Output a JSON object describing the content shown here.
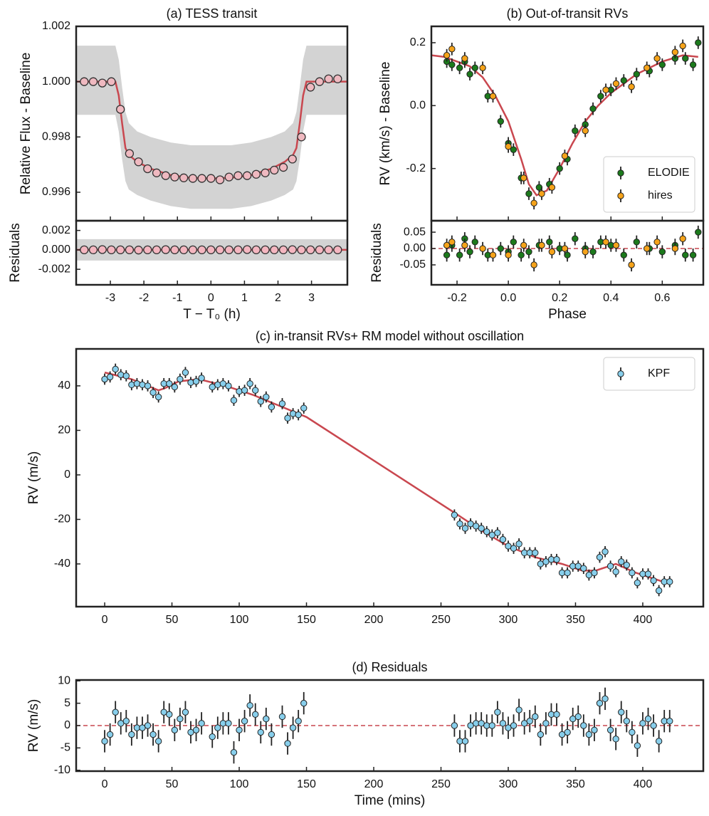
{
  "chart_data": [
    {
      "type": "scatter",
      "title": "(a) TESS transit",
      "ylabel": "Relative Flux - Baseline",
      "xlim": [
        -4.02,
        4.07
      ],
      "ylim": [
        0.99497,
        1.002
      ],
      "yticks": [
        0.996,
        0.998,
        {
          "value": 1,
          "label": "1.000"
        },
        1.002
      ],
      "series": [
        {
          "style": "band",
          "color": "#d3d3d3",
          "x": [
            -4.02,
            -2.85,
            -2.75,
            -2.65,
            -2.55,
            -2.45,
            -2.2,
            -1.8,
            -1.2,
            -0.6,
            0,
            0.6,
            1.2,
            1.8,
            2.2,
            2.45,
            2.55,
            2.65,
            2.75,
            2.85,
            4.07
          ],
          "lower": [
            0.9988,
            0.9988,
            0.9982,
            0.9972,
            0.9964,
            0.9961,
            0.9959,
            0.9957,
            0.9955,
            0.9954,
            0.9954,
            0.9954,
            0.9955,
            0.9957,
            0.9959,
            0.9961,
            0.9964,
            0.9972,
            0.9982,
            0.9988,
            0.9988
          ],
          "upper": [
            1.0013,
            1.0013,
            1.0008,
            0.9998,
            0.9989,
            0.9985,
            0.9982,
            0.998,
            0.9978,
            0.9977,
            0.9977,
            0.9977,
            0.9978,
            0.998,
            0.9982,
            0.9985,
            0.9989,
            0.9998,
            1.0008,
            1.0013,
            1.0013
          ]
        },
        {
          "style": "line",
          "color": "#c9474f",
          "x": [
            -4.02,
            -2.85,
            -2.75,
            -2.65,
            -2.55,
            -2.45,
            -2.2,
            -1.8,
            -1.2,
            -0.6,
            0,
            0.6,
            1.2,
            1.8,
            2.2,
            2.45,
            2.55,
            2.65,
            2.75,
            2.85,
            4.07
          ],
          "values": [
            1.0,
            1.0,
            0.9995,
            0.9985,
            0.9976,
            0.99735,
            0.9971,
            0.99685,
            0.99662,
            0.99652,
            0.9965,
            0.99652,
            0.99662,
            0.99685,
            0.9971,
            0.99735,
            0.9976,
            0.9985,
            0.9995,
            1.0,
            1.0
          ]
        },
        {
          "style": "points",
          "color": "#efb9c0",
          "x": [
            -3.78,
            -3.51,
            -3.24,
            -2.97,
            -2.7,
            -2.43,
            -2.16,
            -1.89,
            -1.62,
            -1.35,
            -1.08,
            -0.81,
            -0.54,
            -0.27,
            0,
            0.27,
            0.54,
            0.81,
            1.08,
            1.35,
            1.62,
            1.89,
            2.16,
            2.43,
            2.7,
            2.97,
            3.24,
            3.51,
            3.78
          ],
          "values": [
            1.0,
            1.0,
            0.99995,
            1.0,
            0.999,
            0.9974,
            0.9971,
            0.99685,
            0.9967,
            0.9966,
            0.99655,
            0.99652,
            0.9965,
            0.9965,
            0.9965,
            0.99645,
            0.99655,
            0.9966,
            0.9966,
            0.99665,
            0.9967,
            0.9968,
            0.9969,
            0.9972,
            0.998,
            0.9998,
            1.0,
            1.0001,
            1.0001
          ]
        }
      ]
    },
    {
      "type": "scatter",
      "ylabel": "Residuals",
      "xlabel": "T − T₀ (h)",
      "xlim": [
        -4.02,
        4.07
      ],
      "ylim": [
        -0.0036,
        0.003
      ],
      "xticks": [
        -3,
        -2,
        -1,
        0,
        1,
        2,
        3
      ],
      "yticks": [
        -0.002,
        {
          "value": 0,
          "label": "0.000"
        },
        0.002
      ],
      "series": [
        {
          "style": "band",
          "color": "#d3d3d3",
          "x": [
            -4.02,
            4.07
          ],
          "lower": [
            -0.0011,
            -0.0011
          ],
          "upper": [
            0.0011,
            0.0011
          ]
        },
        {
          "style": "line",
          "color": "#c9474f",
          "x": [
            -4.02,
            4.07
          ],
          "values": [
            0,
            0
          ]
        },
        {
          "style": "points",
          "color": "#f4b6c0",
          "x": [
            -3.78,
            -3.51,
            -3.24,
            -2.97,
            -2.7,
            -2.43,
            -2.16,
            -1.89,
            -1.62,
            -1.35,
            -1.08,
            -0.81,
            -0.54,
            -0.27,
            0,
            0.27,
            0.54,
            0.81,
            1.08,
            1.35,
            1.62,
            1.89,
            2.16,
            2.43,
            2.7,
            2.97,
            3.24,
            3.51,
            3.78
          ],
          "values": [
            0,
            0,
            3e-05,
            0,
            0,
            0,
            -2e-05,
            0,
            0,
            2e-05,
            0,
            0,
            0,
            0,
            0,
            0,
            0,
            0,
            3e-05,
            0,
            0,
            0,
            0,
            2e-05,
            0,
            0,
            0,
            0,
            0
          ]
        }
      ]
    },
    {
      "type": "errorbar",
      "title": "(b) Out-of-transit RVs",
      "ylabel": "RV (km/s) - Baseline",
      "xlim": [
        -0.3,
        0.76
      ],
      "ylim": [
        -0.366,
        0.252
      ],
      "yticks": [
        -0.2,
        {
          "value": 0,
          "label": "0.0"
        },
        0.2
      ],
      "legend": "lower right",
      "series": [
        {
          "style": "errorbar",
          "name": "ELODIE",
          "color": "#1c7a1c",
          "error": 0.02,
          "x": [
            -0.24,
            -0.22,
            -0.19,
            -0.17,
            -0.15,
            -0.13,
            -0.08,
            -0.03,
            0.0,
            0.02,
            0.05,
            0.08,
            0.12,
            0.16,
            0.2,
            0.23,
            0.26,
            0.3,
            0.33,
            0.36,
            0.4,
            0.45,
            0.5,
            0.55,
            0.6,
            0.65,
            0.69,
            0.72,
            0.74
          ],
          "values": [
            0.14,
            0.13,
            0.12,
            0.14,
            0.1,
            0.12,
            0.03,
            -0.05,
            -0.12,
            -0.14,
            -0.23,
            -0.28,
            -0.26,
            -0.25,
            -0.2,
            -0.17,
            -0.08,
            -0.06,
            -0.01,
            0.03,
            0.05,
            0.08,
            0.1,
            0.11,
            0.13,
            0.15,
            0.15,
            0.13,
            0.2
          ]
        },
        {
          "style": "errorbar",
          "name": "hires",
          "color": "#f5a31a",
          "error": 0.02,
          "x": [
            -0.24,
            -0.22,
            -0.17,
            -0.1,
            -0.06,
            0.0,
            0.06,
            0.1,
            0.13,
            0.17,
            0.22,
            0.3,
            0.38,
            0.42,
            0.48,
            0.54,
            0.58,
            0.65,
            0.68
          ],
          "values": [
            0.16,
            0.18,
            0.15,
            0.12,
            0.03,
            -0.13,
            -0.23,
            -0.31,
            -0.28,
            -0.26,
            -0.16,
            -0.08,
            0.05,
            0.07,
            0.06,
            0.12,
            0.15,
            0.17,
            0.19
          ]
        },
        {
          "style": "line",
          "color": "#c9474f",
          "x": [
            -0.3,
            -0.25,
            -0.2,
            -0.15,
            -0.1,
            -0.05,
            0,
            0.05,
            0.08,
            0.11,
            0.15,
            0.2,
            0.25,
            0.3,
            0.35,
            0.4,
            0.5,
            0.6,
            0.68,
            0.74
          ],
          "values": [
            0.16,
            0.155,
            0.14,
            0.125,
            0.09,
            0.03,
            -0.05,
            -0.17,
            -0.25,
            -0.285,
            -0.27,
            -0.2,
            -0.12,
            -0.05,
            0.0,
            0.04,
            0.1,
            0.14,
            0.16,
            0.155
          ]
        }
      ]
    },
    {
      "type": "errorbar",
      "ylabel": "Residuals",
      "xlabel": "Phase",
      "xlim": [
        -0.3,
        0.76
      ],
      "ylim": [
        -0.111,
        0.085
      ],
      "xticks": [
        -0.2,
        {
          "value": 0,
          "label": "0.0"
        },
        0.2,
        0.4,
        0.6
      ],
      "yticks": [
        -0.05,
        {
          "value": 0,
          "label": "0.00"
        },
        0.05
      ],
      "series": [
        {
          "style": "line",
          "dashed": true,
          "color": "#c9474f",
          "x": [
            -0.3,
            0.76
          ],
          "values": [
            0,
            0
          ]
        },
        {
          "style": "errorbar",
          "color": "#1c7a1c",
          "error": 0.02,
          "x": [
            -0.24,
            -0.22,
            -0.19,
            -0.17,
            -0.15,
            -0.13,
            -0.08,
            -0.03,
            0.0,
            0.02,
            0.05,
            0.08,
            0.12,
            0.16,
            0.2,
            0.23,
            0.26,
            0.3,
            0.33,
            0.36,
            0.4,
            0.45,
            0.5,
            0.55,
            0.6,
            0.65,
            0.69,
            0.72,
            0.74
          ],
          "values": [
            -0.02,
            0.01,
            -0.02,
            0.03,
            -0.01,
            0.02,
            -0.02,
            0.0,
            -0.01,
            0.02,
            -0.02,
            -0.01,
            0.01,
            0.02,
            0.0,
            -0.02,
            0.03,
            0.0,
            -0.01,
            0.02,
            0.01,
            -0.02,
            0.02,
            0.0,
            -0.01,
            0.01,
            -0.02,
            -0.02,
            0.05
          ]
        },
        {
          "style": "errorbar",
          "color": "#f5a31a",
          "error": 0.02,
          "x": [
            -0.24,
            -0.22,
            -0.17,
            -0.1,
            -0.06,
            0.0,
            0.06,
            0.1,
            0.13,
            0.17,
            0.22,
            0.3,
            0.38,
            0.42,
            0.48,
            0.54,
            0.58,
            0.65,
            0.68
          ],
          "values": [
            0.01,
            0.02,
            0.01,
            0.0,
            -0.02,
            -0.02,
            0.01,
            -0.05,
            0.01,
            -0.01,
            0.0,
            -0.01,
            0.02,
            0.01,
            -0.05,
            0.0,
            0.02,
            0.0,
            0.03
          ]
        }
      ]
    },
    {
      "type": "errorbar",
      "title": "(c) in-transit RVs+ RM model without oscillation",
      "ylabel": "RV (m/s)",
      "xlim": [
        -21.2,
        445
      ],
      "ylim": [
        -59.2,
        56.6
      ],
      "xticks": [
        0,
        50,
        100,
        150,
        200,
        250,
        300,
        350,
        400
      ],
      "yticks": [
        -40,
        -20,
        0,
        20,
        40
      ],
      "legend": "upper right",
      "series": [
        {
          "style": "errorbar",
          "name": "KPF",
          "color": "#87ceeb",
          "error": 2.5,
          "x": [
            0,
            4,
            8,
            12,
            16,
            20,
            24,
            28,
            32,
            36,
            40,
            44,
            48,
            52,
            56,
            60,
            64,
            68,
            72,
            80,
            84,
            88,
            92,
            96,
            100,
            104,
            108,
            112,
            116,
            120,
            124,
            132,
            136,
            140,
            144,
            148,
            260,
            264,
            268,
            272,
            276,
            280,
            284,
            288,
            292,
            296,
            300,
            304,
            308,
            312,
            316,
            320,
            324,
            328,
            332,
            336,
            340,
            344,
            348,
            352,
            356,
            360,
            364,
            368,
            372,
            376,
            380,
            384,
            388,
            392,
            396,
            400,
            404,
            408,
            412,
            416,
            420
          ],
          "values": [
            43,
            44,
            47.5,
            45,
            44.5,
            40.5,
            41,
            40.5,
            40,
            37,
            35,
            41,
            41,
            39.5,
            43,
            46,
            41.5,
            42,
            43.5,
            39.5,
            40.5,
            41,
            40,
            33.5,
            37.5,
            38,
            41,
            38,
            33,
            35,
            30.5,
            32,
            25.5,
            27.5,
            27,
            30,
            -18,
            -22,
            -24,
            -22,
            -23,
            -24,
            -25.5,
            -27,
            -26,
            -29,
            -32,
            -33,
            -31,
            -35,
            -35,
            -35,
            -40,
            -39,
            -38,
            -38,
            -44,
            -44,
            -41,
            -41,
            -42,
            -45,
            -44,
            -37,
            -34.5,
            -41,
            -43.5,
            -39,
            -40.5,
            -44,
            -48.5,
            -44.5,
            -44.5,
            -47.5,
            -52,
            -48,
            -48
          ]
        },
        {
          "style": "line",
          "color": "#c9474f",
          "x": [
            0,
            20,
            40,
            45,
            55,
            70,
            90,
            110,
            130,
            150,
            260,
            280,
            300,
            320,
            340,
            355,
            365,
            380,
            395,
            420
          ],
          "values": [
            46,
            43,
            38,
            39,
            42,
            43,
            40,
            36,
            31,
            26,
            -17,
            -25,
            -32,
            -37,
            -40,
            -43,
            -43,
            -40,
            -44,
            -49
          ]
        }
      ]
    },
    {
      "type": "errorbar",
      "title": "(d) Residuals",
      "ylabel": "RV (m/s)",
      "xlabel": "Time (mins)",
      "xlim": [
        -21.2,
        445
      ],
      "ylim": [
        -10.2,
        10.2
      ],
      "xticks": [
        0,
        50,
        100,
        150,
        200,
        250,
        300,
        350,
        400
      ],
      "yticks": [
        -10,
        -5,
        0,
        5,
        10
      ],
      "series": [
        {
          "style": "line",
          "dashed": true,
          "color": "#c9474f",
          "x": [
            -21.2,
            445
          ],
          "values": [
            0,
            0
          ]
        },
        {
          "style": "errorbar",
          "color": "#87ceeb",
          "error": 2.5,
          "x": [
            0,
            4,
            8,
            12,
            16,
            20,
            24,
            28,
            32,
            36,
            40,
            44,
            48,
            52,
            56,
            60,
            64,
            68,
            72,
            80,
            84,
            88,
            92,
            96,
            100,
            104,
            108,
            112,
            116,
            120,
            124,
            132,
            136,
            140,
            144,
            148,
            260,
            264,
            268,
            272,
            276,
            280,
            284,
            288,
            292,
            296,
            300,
            304,
            308,
            312,
            316,
            320,
            324,
            328,
            332,
            336,
            340,
            344,
            348,
            352,
            356,
            360,
            364,
            368,
            372,
            376,
            380,
            384,
            388,
            392,
            396,
            400,
            404,
            408,
            412,
            416,
            420
          ],
          "values": [
            -3.5,
            -2,
            3,
            0.5,
            1,
            -2,
            -0.5,
            -0.5,
            0,
            -2,
            -3.5,
            3,
            2.5,
            -1,
            1.5,
            3,
            -1.5,
            -1,
            0.5,
            -2.5,
            -0.5,
            0.5,
            0.5,
            -6,
            -1,
            1,
            4.5,
            2.5,
            -1.5,
            1.5,
            -2,
            2,
            -4,
            -0.5,
            1,
            5,
            0,
            -3.5,
            -3.5,
            0,
            0.5,
            0.5,
            0,
            0,
            3,
            0.5,
            -0.5,
            0,
            3.5,
            0.5,
            1,
            2,
            -2,
            0.5,
            2.5,
            2.5,
            -2,
            -1.5,
            1.5,
            2,
            0,
            -2,
            -1,
            5,
            6,
            -1,
            -3,
            3,
            1,
            -1.5,
            -4.5,
            0.5,
            1.5,
            0,
            -3.5,
            1,
            1
          ]
        }
      ]
    }
  ]
}
